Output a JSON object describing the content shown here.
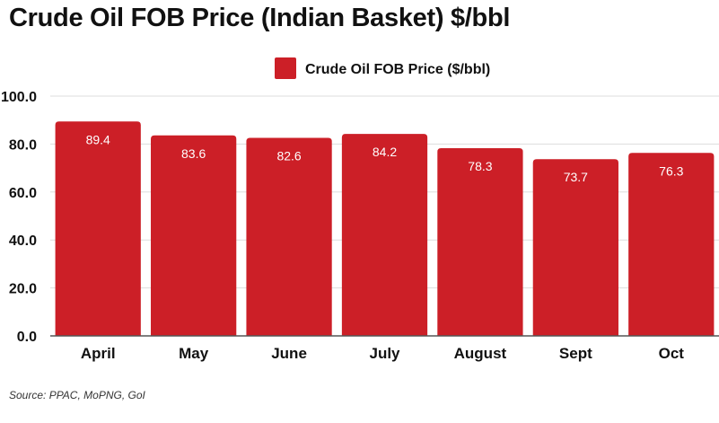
{
  "title": "Crude Oil FOB Price (Indian Basket) $/bbl",
  "source": "Source: PPAC, MoPNG, GoI",
  "colors": {
    "bar": "#cc1f27",
    "grid": "#dddddd",
    "axis": "#555555",
    "text": "#111111",
    "label": "#ffffff"
  },
  "chart_data": {
    "type": "bar",
    "categories": [
      "April",
      "May",
      "June",
      "July",
      "August",
      "Sept",
      "Oct"
    ],
    "series": [
      {
        "name": "Crude Oil FOB Price ($/bbl)",
        "values": [
          89.4,
          83.6,
          82.6,
          84.2,
          78.3,
          73.7,
          76.3
        ],
        "data_labels": [
          "89.4",
          "83.6",
          "82.6",
          "84.2",
          "78.3",
          "73.7",
          "76.3"
        ]
      }
    ],
    "ylim": [
      0,
      100
    ],
    "yticks": [
      0,
      20,
      40,
      60,
      80,
      100
    ],
    "ytick_labels": [
      "0.0",
      "20.0",
      "40.0",
      "60.0",
      "80.0",
      "100.0"
    ],
    "xlabel": "",
    "ylabel": "",
    "grid": true,
    "legend": "top-center"
  }
}
